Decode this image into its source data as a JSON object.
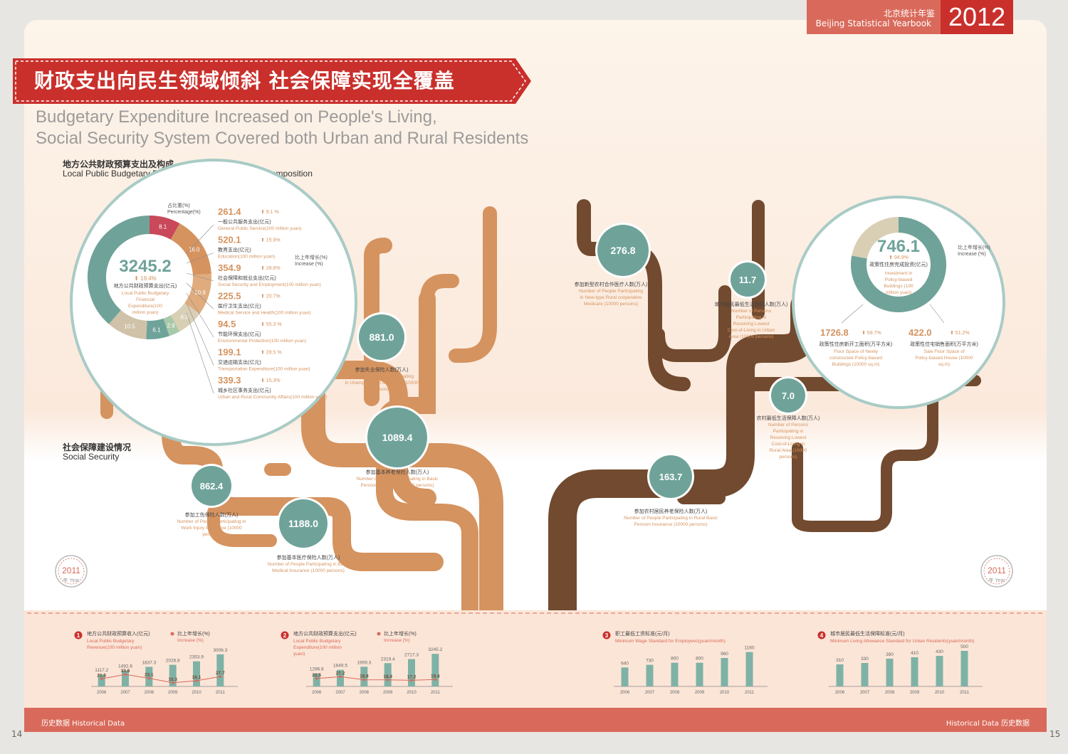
{
  "header": {
    "yearbook_cn": "北京统计年鉴",
    "yearbook_en": "Beijing Statistical Yearbook",
    "year": "2012"
  },
  "banner": {
    "title_cn": "财政支出向民生领域倾斜 社会保障实现全覆盖",
    "title_en_line1": "Budgetary Expenditure Increased on People's Living,",
    "title_en_line2": "Social Security System Covered both Urban and Rural Residents"
  },
  "section1": {
    "title_cn": "地方公共财政预算支出及构成",
    "title_en": "Local Public Budgetary Financial Expenditure and Its Composition"
  },
  "section2": {
    "title_cn": "社会保障建设情况",
    "title_en": "Social Security"
  },
  "badge": {
    "year": "2011",
    "label": "年 Year"
  },
  "footer": {
    "hist_left": "历史数据   Historical Data",
    "hist_right": "Historical Data   历史数据",
    "page_left": "14",
    "page_right": "15"
  },
  "colors": {
    "teal": "#6fa39a",
    "orange": "#d5935f",
    "brown": "#714a2f",
    "red": "#c9302c",
    "salmon": "#d96a5b",
    "beige": "#d9cfb5"
  },
  "chart_data": [
    {
      "type": "pie",
      "title": "地方公共财政预算支出及构成",
      "center_value": "3245.2",
      "center_increase": "19.4%",
      "center_label_cn": "地方公共财政预算支出(亿元)",
      "center_label_en": "Local Public Budgetary Financial Expenditure(100 million yuan)",
      "legend_cn": "占比重(%)",
      "legend_en": "Percentage(%)",
      "increase_cn": "比上年增长(%)",
      "increase_en": "Increase (%)",
      "slices": [
        {
          "label_cn": "一般公共服务支出(亿元)",
          "label_en": "General Public Service(100 million yuan)",
          "value": 261.4,
          "increase": "9.1 %",
          "percent": 8.1
        },
        {
          "label_cn": "教育支出(亿元)",
          "label_en": "Education(100 million yuan)",
          "value": 520.1,
          "increase": "15.9%",
          "percent": 16.0
        },
        {
          "label_cn": "社会保障和就业支出(亿元)",
          "label_en": "Social Security and Employment(100 million yuan)",
          "value": 354.9,
          "increase": "28.6%",
          "percent": 10.9
        },
        {
          "label_cn": "医疗卫生支出(亿元)",
          "label_en": "Medical Service and Health(100 million yuan)",
          "value": 225.5,
          "increase": "20.7%",
          "percent": 6.9
        },
        {
          "label_cn": "节能环保支出(亿元)",
          "label_en": "Environmental Protection(100 million yuan)",
          "value": 94.5,
          "increase": "55.3 %",
          "percent": 2.9
        },
        {
          "label_cn": "交通运输支出(亿元)",
          "label_en": "Transportation Expenditure(100 million yuan)",
          "value": 199.1,
          "increase": "28.5 %",
          "percent": 6.1
        },
        {
          "label_cn": "城乡社区事务支出(亿元)",
          "label_en": "Urban and Rural Community Affairs(100 million yuan)",
          "value": 339.3,
          "increase": "15.3%",
          "percent": 10.5
        }
      ]
    },
    {
      "type": "bubble",
      "title": "社会保障建设情况",
      "items": [
        {
          "value": "881.0",
          "label_cn": "参加失业保险人数(万人)",
          "label_en": "Number of People Participating in Unemployment Insurance (10000 persons)"
        },
        {
          "value": "1089.4",
          "label_cn": "参加基本养老保险人数(万人)",
          "label_en": "Number of People Participating in Basic Pension Insurance (10000 persons)"
        },
        {
          "value": "862.4",
          "label_cn": "参加工伤保险人数(万人)",
          "label_en": "Number of People Participating in Work Injury Insurance (10000 persons)"
        },
        {
          "value": "1188.0",
          "label_cn": "参加基本医疗保险人数(万人)",
          "label_en": "Number of People Participating in Basic Medical Insurance (10000 persons)"
        },
        {
          "value": "276.8",
          "label_cn": "参加新型农村合作医疗人数(万人)",
          "label_en": "Number of People Participating in New-type Rural cooperative Medicare (10000 persons)"
        },
        {
          "value": "11.7",
          "label_cn": "城市居民最低生活保障人数(万人)",
          "label_en": "Number of Persons Participating in Receiving Lowest Cost-of-Living in Urban Area (10000 persons)"
        },
        {
          "value": "7.0",
          "label_cn": "农村最低生活保障人数(万人)",
          "label_en": "Number of Persons Participating in Receiving Lowest Cost-of-Living in Rural Area (10000 persons)"
        },
        {
          "value": "163.7",
          "label_cn": "参加农村居民养老保险人数(万人)",
          "label_en": "Number of People Participating in Rural Basic Pension Insurance (10000 persons)"
        }
      ]
    },
    {
      "type": "pie",
      "title": "政策性住房完成投资(亿元)",
      "center_value": "746.1",
      "center_increase": "94.9%",
      "center_label_cn": "政策性住房完成投资(亿元)",
      "center_label_en": "Investment in Policy-biased Buildings (100 million yuan)",
      "increase_cn": "比上年增长(%)",
      "increase_en": "Increase (%)",
      "items": [
        {
          "value": 1726.8,
          "increase": "59.7%",
          "label_cn": "政策性住房新开工面积(万平方米)",
          "label_en": "Floor Space of Newly constructed Policy-biased Buildings (10000 sq.m)"
        },
        {
          "value": 422.0,
          "increase": "51.2%",
          "label_cn": "政策性住宅销售面积(万平方米)",
          "label_en": "Sale Floor Space of Policy-biased House (10000 sq.m)"
        }
      ]
    },
    {
      "type": "bar",
      "title": "地方公共财政预算收入(亿元) Local Public Budgetary Revenue(100 million yuan)",
      "num": "1",
      "title_cn": "地方公共财政预算收入(亿元)",
      "title_en": "Local Public Budgetary Revenue(100 million yuan)",
      "legend_cn": "比上年增长(%)",
      "legend_en": "Increase (%)",
      "categories": [
        "2006",
        "2007",
        "2008",
        "2009",
        "2010",
        "2011"
      ],
      "values": [
        1117.2,
        1492.6,
        1837.3,
        2026.8,
        2353.9,
        3006.3
      ],
      "increase": [
        21.5,
        33.6,
        23.1,
        10.3,
        16.1,
        27.7
      ]
    },
    {
      "type": "bar",
      "title": "地方公共财政预算支出(亿元) Local Public Budgetary Expenditure(100 million yuan)",
      "num": "2",
      "title_cn": "地方公共财政预算支出(亿元)",
      "title_en": "Local Public Budgetary Expenditure(100 million yuan)",
      "legend_cn": "比上年增长(%)",
      "legend_en": "Increase (%)",
      "categories": [
        "2006",
        "2007",
        "2008",
        "2009",
        "2010",
        "2011"
      ],
      "values": [
        1296.8,
        1649.5,
        1959.3,
        2319.4,
        2717.3,
        3245.2
      ],
      "increase": [
        22.5,
        27.2,
        18.8,
        18.4,
        17.2,
        19.4
      ]
    },
    {
      "type": "bar",
      "title": "职工最低工资标准(元/月) Minimum Wage Standard for Employees(yuan/month)",
      "num": "3",
      "title_cn": "职工最低工资标准(元/月)",
      "title_en": "Minimum Wage Standard for Employees(yuan/month)",
      "categories": [
        "2006",
        "2007",
        "2008",
        "2009",
        "2010",
        "2011"
      ],
      "values": [
        640,
        730,
        800,
        800,
        960,
        1160
      ]
    },
    {
      "type": "bar",
      "title": "城市居民最低生活保障标准(元/月) Minimum Living Allowance Standard for Urban Residents(yuan/month)",
      "num": "4",
      "title_cn": "城市居民最低生活保障标准(元/月)",
      "title_en": "Minimum Living Allowance Standard for Urban Residents(yuan/month)",
      "categories": [
        "2006",
        "2007",
        "2008",
        "2009",
        "2010",
        "2011"
      ],
      "values": [
        310,
        330,
        390,
        410,
        430,
        500
      ]
    }
  ]
}
